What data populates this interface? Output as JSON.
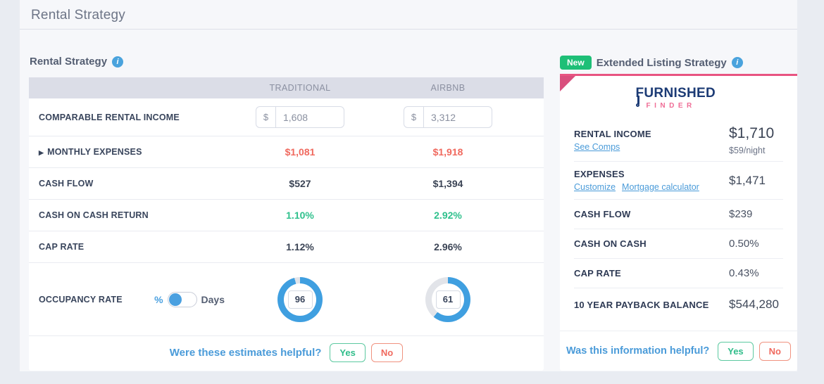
{
  "page": {
    "title": "Rental Strategy"
  },
  "icons": {
    "info": "i",
    "expander": "▶"
  },
  "colors": {
    "accent_blue": "#4a9bd9",
    "donut_blue": "#3f9fe0",
    "donut_track": "#e2e4e9",
    "negative_red": "#f0695e",
    "positive_green": "#2fc08c",
    "brand_pink": "#e85481",
    "badge_green": "#1ebf77"
  },
  "left_panel": {
    "title": "Rental Strategy",
    "columns": [
      "TRADITIONAL",
      "AIRBNB"
    ],
    "rows": {
      "income": {
        "label": "COMPARABLE RENTAL INCOME",
        "currency": "$",
        "traditional": "1,608",
        "airbnb": "3,312"
      },
      "expenses": {
        "label": "MONTHLY EXPENSES",
        "traditional": "$1,081",
        "airbnb": "$1,918"
      },
      "cash_flow": {
        "label": "CASH FLOW",
        "traditional": "$527",
        "airbnb": "$1,394"
      },
      "coc": {
        "label": "CASH ON CASH RETURN",
        "traditional": "1.10%",
        "airbnb": "2.92%"
      },
      "cap_rate": {
        "label": "CAP RATE",
        "traditional": "1.12%",
        "airbnb": "2.96%"
      },
      "occupancy": {
        "label": "OCCUPANCY RATE",
        "toggle_left": "%",
        "toggle_right": "Days",
        "traditional": "96",
        "airbnb": "61"
      }
    },
    "footer": {
      "question": "Were these estimates helpful?",
      "yes": "Yes",
      "no": "No"
    }
  },
  "right_panel": {
    "badge": "New",
    "title": "Extended Listing Strategy",
    "logo": {
      "line1": "FURNISHED",
      "line2": "FINDER"
    },
    "rows": {
      "rental_income": {
        "label": "RENTAL INCOME",
        "link": "See Comps",
        "value": "$1,710",
        "subvalue": "$59/night"
      },
      "expenses": {
        "label": "EXPENSES",
        "link1": "Customize",
        "link2": "Mortgage calculator",
        "value": "$1,471"
      },
      "cash_flow": {
        "label": "CASH FLOW",
        "value": "$239"
      },
      "cash_on_cash": {
        "label": "CASH ON CASH",
        "value": "0.50%"
      },
      "cap_rate": {
        "label": "CAP RATE",
        "value": "0.43%"
      },
      "payback": {
        "label": "10 YEAR PAYBACK BALANCE",
        "value": "$544,280"
      }
    },
    "footer": {
      "question": "Was this information helpful?",
      "yes": "Yes",
      "no": "No"
    }
  }
}
